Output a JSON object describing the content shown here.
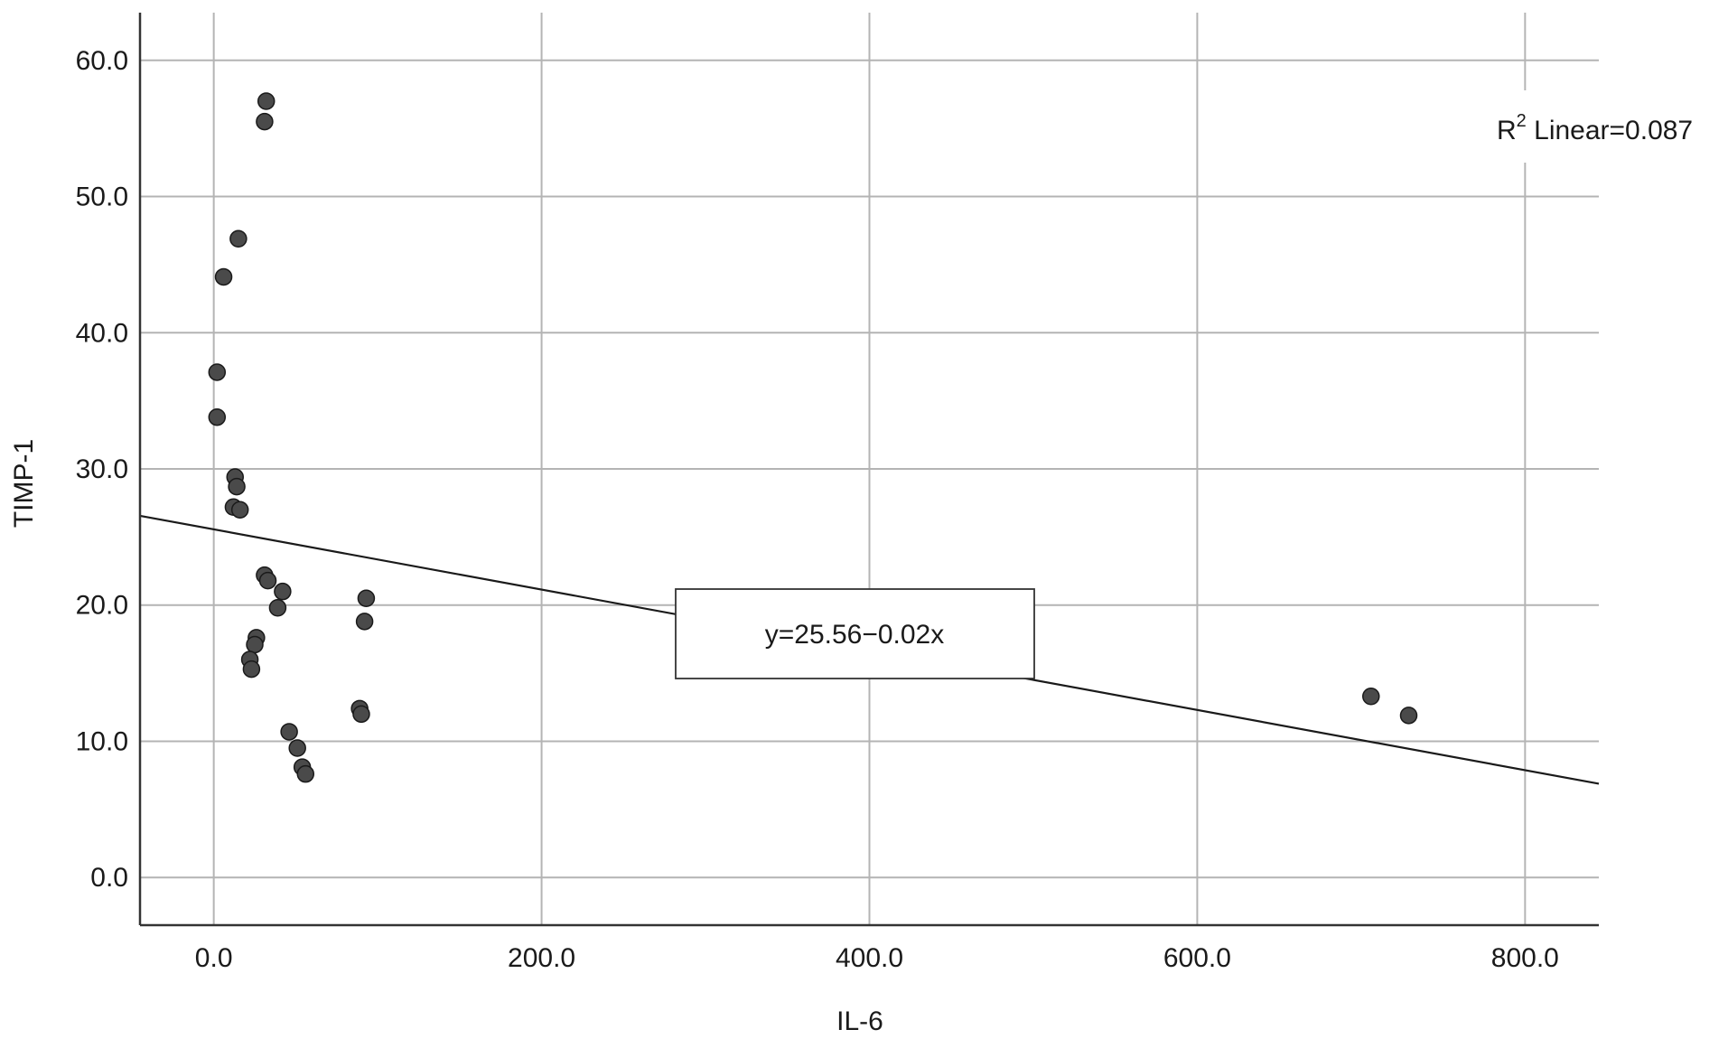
{
  "chart_data": {
    "type": "scatter",
    "xlabel": "IL-6",
    "ylabel": "TIMP-1",
    "xlim": [
      -45,
      845
    ],
    "ylim": [
      -3.5,
      63.5
    ],
    "x_ticks": [
      0,
      200,
      400,
      600,
      800
    ],
    "x_tick_labels": [
      "0.0",
      "200.0",
      "400.0",
      "600.0",
      "800.0"
    ],
    "y_ticks": [
      0,
      10,
      20,
      30,
      40,
      50,
      60
    ],
    "y_tick_labels": [
      "0.0",
      "10.0",
      "20.0",
      "30.0",
      "40.0",
      "50.0",
      "60.0"
    ],
    "grid": true,
    "points": [
      {
        "x": 32,
        "y": 57.0
      },
      {
        "x": 31,
        "y": 55.5
      },
      {
        "x": 15,
        "y": 46.9
      },
      {
        "x": 6,
        "y": 44.1
      },
      {
        "x": 2,
        "y": 37.1
      },
      {
        "x": 2,
        "y": 33.8
      },
      {
        "x": 13,
        "y": 29.4
      },
      {
        "x": 14,
        "y": 28.7
      },
      {
        "x": 12,
        "y": 27.2
      },
      {
        "x": 16,
        "y": 27.0
      },
      {
        "x": 31,
        "y": 22.2
      },
      {
        "x": 33,
        "y": 21.8
      },
      {
        "x": 42,
        "y": 21.0
      },
      {
        "x": 39,
        "y": 19.8
      },
      {
        "x": 93,
        "y": 20.5
      },
      {
        "x": 92,
        "y": 18.8
      },
      {
        "x": 26,
        "y": 17.6
      },
      {
        "x": 25,
        "y": 17.1
      },
      {
        "x": 22,
        "y": 16.0
      },
      {
        "x": 23,
        "y": 15.3
      },
      {
        "x": 89,
        "y": 12.4
      },
      {
        "x": 90,
        "y": 12.0
      },
      {
        "x": 46,
        "y": 10.7
      },
      {
        "x": 51,
        "y": 9.5
      },
      {
        "x": 54,
        "y": 8.1
      },
      {
        "x": 56,
        "y": 7.6
      },
      {
        "x": 706,
        "y": 13.3
      },
      {
        "x": 729,
        "y": 11.9
      }
    ],
    "fit_line": {
      "intercept": 25.56,
      "slope": -0.0221
    },
    "annotations": {
      "equation": "y=25.56−0.02x",
      "r2_prefix": "R",
      "r2_sup": "2",
      "r2_text": " Linear=0.087"
    }
  }
}
